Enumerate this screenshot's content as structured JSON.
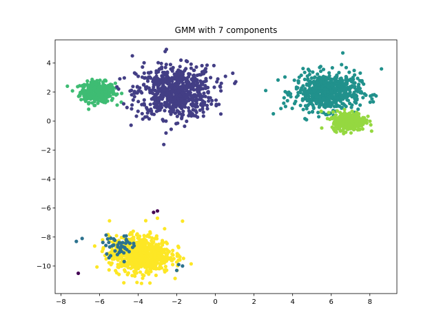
{
  "chart_data": {
    "type": "scatter",
    "title": "GMM with 7 components",
    "xlabel": "",
    "ylabel": "",
    "xlim": [
      -8.3,
      9.4
    ],
    "ylim": [
      -11.9,
      5.6
    ],
    "xticks": [
      -8,
      -6,
      -4,
      -2,
      0,
      2,
      4,
      6,
      8
    ],
    "yticks": [
      -10,
      -8,
      -6,
      -4,
      -2,
      0,
      2,
      4
    ],
    "grid": false,
    "legend": "none",
    "clusters": [
      {
        "color": "#3ebc73",
        "center": [
          -6.1,
          2.0
        ],
        "spread": [
          0.45,
          0.35
        ],
        "count": 320
      },
      {
        "color": "#433e85",
        "center": [
          -2.1,
          2.0
        ],
        "spread": [
          1.0,
          0.9
        ],
        "count": 700
      },
      {
        "color": "#21918c",
        "center": [
          5.8,
          2.0
        ],
        "spread": [
          0.85,
          0.65
        ],
        "count": 600
      },
      {
        "color": "#95d840",
        "center": [
          6.9,
          0.0
        ],
        "spread": [
          0.42,
          0.32
        ],
        "count": 350
      },
      {
        "color": "#fde725",
        "center": [
          -3.9,
          -9.2
        ],
        "spread": [
          0.8,
          0.65
        ],
        "count": 700
      },
      {
        "color": "#2c728e",
        "center": [
          -5.0,
          -8.6
        ],
        "spread": [
          0.45,
          0.35
        ],
        "count": 45
      }
    ],
    "points": [
      {
        "color": "#2c728e",
        "x": -7.2,
        "y": -8.3
      },
      {
        "color": "#2c728e",
        "x": -6.9,
        "y": -8.1
      },
      {
        "color": "#2c728e",
        "x": -2.0,
        "y": -10.3
      },
      {
        "color": "#2c728e",
        "x": -1.7,
        "y": -10.0
      },
      {
        "color": "#2c728e",
        "x": -1.9,
        "y": -9.9
      },
      {
        "color": "#440154",
        "x": -7.1,
        "y": -10.5
      },
      {
        "color": "#440154",
        "x": -3.0,
        "y": -6.2
      },
      {
        "color": "#440154",
        "x": -3.2,
        "y": -6.3
      },
      {
        "color": "#433e85",
        "x": 1.0,
        "y": 2.6
      },
      {
        "color": "#433e85",
        "x": 0.9,
        "y": 3.3
      },
      {
        "color": "#433e85",
        "x": -4.3,
        "y": 4.5
      },
      {
        "color": "#433e85",
        "x": -2.6,
        "y": 4.8
      },
      {
        "color": "#21918c",
        "x": 3.0,
        "y": 0.5
      },
      {
        "color": "#21918c",
        "x": 8.6,
        "y": 3.6
      },
      {
        "color": "#21918c",
        "x": 6.6,
        "y": 4.7
      },
      {
        "color": "#fde725",
        "x": -1.7,
        "y": -6.9
      },
      {
        "color": "#fde725",
        "x": -3.0,
        "y": -6.7
      }
    ]
  }
}
